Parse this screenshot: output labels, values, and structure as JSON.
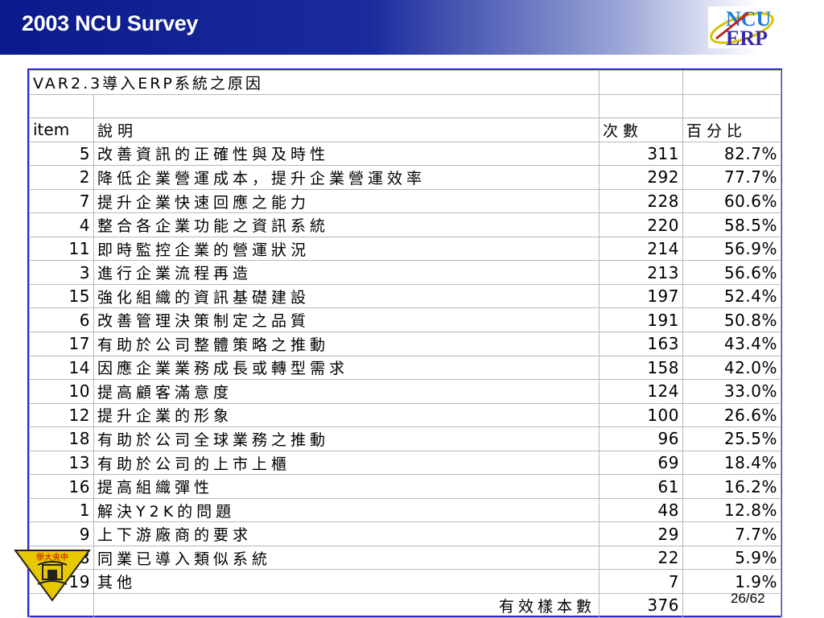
{
  "header": {
    "title": "2003 NCU Survey",
    "logo": {
      "icon": "ncu-erp-logo",
      "line1": "NCU",
      "line2": "ERP"
    }
  },
  "table": {
    "caption": "VAR2.3導入ERP系統之原因",
    "columns": {
      "item": "item",
      "desc": "說明",
      "count": "次數",
      "pct": "百分比"
    },
    "rows": [
      {
        "item": "5",
        "desc": "改善資訊的正確性與及時性",
        "count": "311",
        "pct": "82.7%"
      },
      {
        "item": "2",
        "desc": "降低企業營運成本，提升企業營運效率",
        "count": "292",
        "pct": "77.7%"
      },
      {
        "item": "7",
        "desc": "提升企業快速回應之能力",
        "count": "228",
        "pct": "60.6%"
      },
      {
        "item": "4",
        "desc": "整合各企業功能之資訊系統",
        "count": "220",
        "pct": "58.5%"
      },
      {
        "item": "11",
        "desc": "即時監控企業的營運狀況",
        "count": "214",
        "pct": "56.9%"
      },
      {
        "item": "3",
        "desc": "進行企業流程再造",
        "count": "213",
        "pct": "56.6%"
      },
      {
        "item": "15",
        "desc": "強化組織的資訊基礎建設",
        "count": "197",
        "pct": "52.4%"
      },
      {
        "item": "6",
        "desc": "改善管理決策制定之品質",
        "count": "191",
        "pct": "50.8%"
      },
      {
        "item": "17",
        "desc": "有助於公司整體策略之推動",
        "count": "163",
        "pct": "43.4%"
      },
      {
        "item": "14",
        "desc": "因應企業業務成長或轉型需求",
        "count": "158",
        "pct": "42.0%"
      },
      {
        "item": "10",
        "desc": "提高顧客滿意度",
        "count": "124",
        "pct": "33.0%"
      },
      {
        "item": "12",
        "desc": "提升企業的形象",
        "count": "100",
        "pct": "26.6%"
      },
      {
        "item": "18",
        "desc": "有助於公司全球業務之推動",
        "count": "96",
        "pct": "25.5%"
      },
      {
        "item": "13",
        "desc": "有助於公司的上市上櫃",
        "count": "69",
        "pct": "18.4%"
      },
      {
        "item": "16",
        "desc": "提高組織彈性",
        "count": "61",
        "pct": "16.2%"
      },
      {
        "item": "1",
        "desc": "解決Y2K的問題",
        "count": "48",
        "pct": "12.8%"
      },
      {
        "item": "9",
        "desc": "上下游廠商的要求",
        "count": "29",
        "pct": "7.7%"
      },
      {
        "item": "8",
        "desc": "同業已導入類似系統",
        "count": "22",
        "pct": "5.9%"
      },
      {
        "item": "19",
        "desc": "其他",
        "count": "7",
        "pct": "1.9%"
      }
    ],
    "footer": {
      "label": "有效樣本數",
      "count": "376"
    }
  },
  "seal": {
    "icon": "university-seal-icon",
    "text": "學大央中"
  },
  "page": {
    "number": "26/62"
  }
}
